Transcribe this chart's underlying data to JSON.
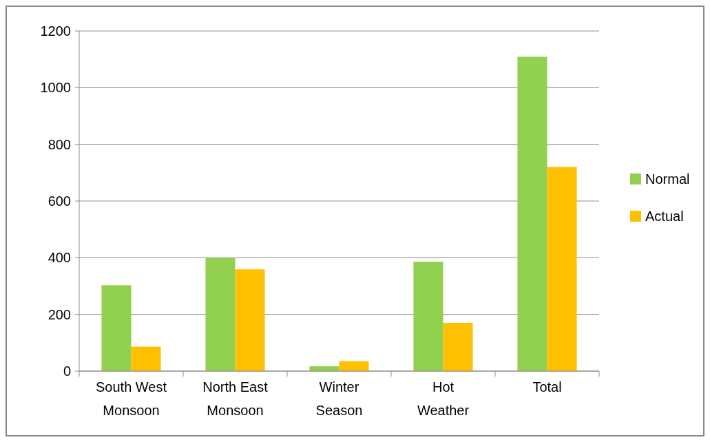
{
  "chart_data": {
    "type": "bar",
    "categories": [
      "South West Monsoon",
      "North East Monsoon",
      "Winter Season",
      "Hot Weather",
      "Total"
    ],
    "series": [
      {
        "name": "Normal",
        "color": "#92d050",
        "values": [
          303,
          400,
          17,
          386,
          1109
        ]
      },
      {
        "name": "Actual",
        "color": "#ffc000",
        "values": [
          86,
          359,
          35,
          170,
          720
        ]
      }
    ],
    "ylim": [
      0,
      1200
    ],
    "yticks": [
      0,
      200,
      400,
      600,
      800,
      1000,
      1200
    ],
    "grid": "y",
    "legend": "right"
  }
}
